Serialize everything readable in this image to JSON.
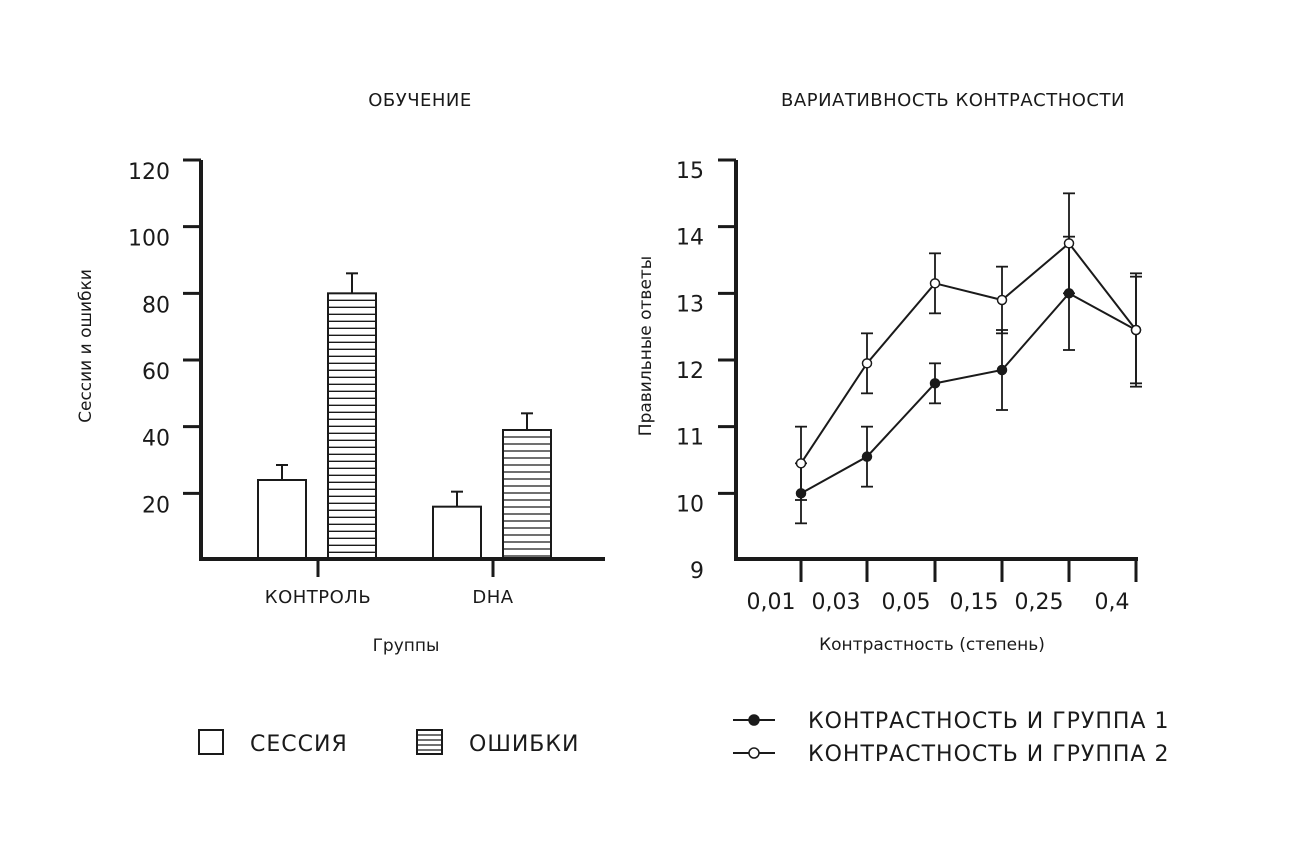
{
  "chart_data": [
    {
      "type": "bar",
      "title": "ОБУЧЕНИЕ",
      "xlabel": "Группы",
      "ylabel": "Сессии и ошибки",
      "categories": [
        "КОНТРОЛЬ",
        "DHA"
      ],
      "yticks": [
        "20",
        "40",
        "60",
        "80",
        "100",
        "120"
      ],
      "ylim": [
        0,
        120
      ],
      "series": [
        {
          "name": "СЕССИЯ",
          "values": [
            24,
            16
          ],
          "errors": [
            4.5,
            4.5
          ],
          "pattern": "empty"
        },
        {
          "name": "ОШИБКИ",
          "values": [
            80,
            39
          ],
          "errors": [
            6,
            5
          ],
          "pattern": "hlines"
        }
      ],
      "legend_position": "bottom"
    },
    {
      "type": "line",
      "title": "ВАРИАТИВНОСТЬ КОНТРАСТНОСТИ",
      "xlabel": "Контрастность (степень)",
      "ylabel": "Правильные ответы",
      "x": [
        "0,01",
        "0,03",
        "0,05",
        "0,15",
        "0,25",
        "0,4"
      ],
      "yticks": [
        "9",
        "10",
        "11",
        "12",
        "13",
        "14",
        "15"
      ],
      "ylim": [
        9,
        15
      ],
      "series": [
        {
          "name": "КОНТРАСТНОСТЬ И ГРУППА 1",
          "marker": "filled",
          "values": [
            10.0,
            10.55,
            11.65,
            11.85,
            13.0,
            12.45
          ],
          "errors": [
            0.45,
            0.45,
            0.3,
            0.6,
            0.85,
            0.85
          ]
        },
        {
          "name": "КОНТРАСТНОСТЬ И ГРУППА 2",
          "marker": "open",
          "values": [
            10.45,
            11.95,
            13.15,
            12.9,
            13.75,
            12.45
          ],
          "errors": [
            0.55,
            0.45,
            0.45,
            0.5,
            0.75,
            0.8
          ]
        }
      ],
      "legend_position": "bottom"
    }
  ]
}
